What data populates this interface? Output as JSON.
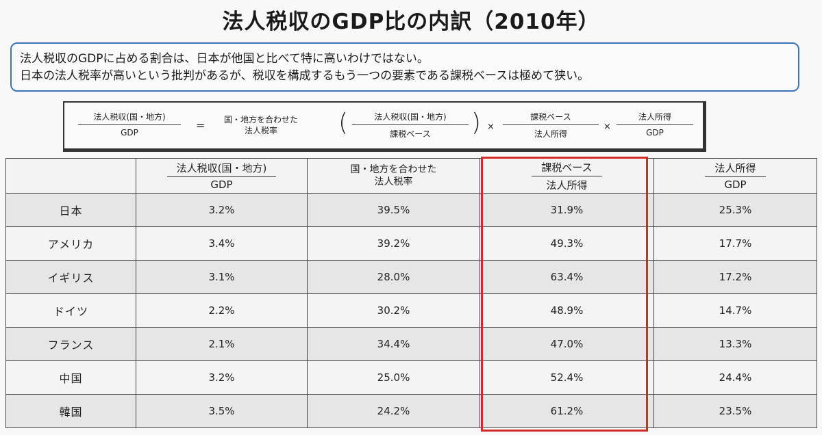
{
  "title": "法人税収のGDP比の内訳（2010年）",
  "summary": {
    "line1": "法人税収のGDPに占める割合は、日本が他国と比べて特に高いわけではない。",
    "line2": "日本の法人税率が高いという批判があるが、税収を構成するもう一つの要素である課税ベースは極めて狭い。"
  },
  "formula": {
    "lhs_num": "法人税収(国・地方)",
    "lhs_den": "GDP",
    "equals": "=",
    "rate_line1": "国・地方を合わせた",
    "rate_line2": "法人税率",
    "paren_open": "(",
    "f1_num": "法人税収(国・地方)",
    "f1_den": "課税ベース",
    "paren_close": ")",
    "times1": "×",
    "f2_num": "課税ベース",
    "f2_den": "法人所得",
    "times2": "×",
    "f3_num": "法人所得",
    "f3_den": "GDP"
  },
  "table": {
    "headers": [
      {
        "num": "法人税収(国・地方)",
        "den": "GDP"
      },
      {
        "line1": "国・地方を合わせた",
        "line2": "法人税率"
      },
      {
        "num": "課税ベース",
        "den": "法人所得"
      },
      {
        "num": "法人所得",
        "den": "GDP"
      }
    ],
    "rows": [
      {
        "country": "日本",
        "c1": "3.2%",
        "c2": "39.5%",
        "c3": "31.9%",
        "c4": "25.3%"
      },
      {
        "country": "アメリカ",
        "c1": "3.4%",
        "c2": "39.2%",
        "c3": "49.3%",
        "c4": "17.7%"
      },
      {
        "country": "イギリス",
        "c1": "3.1%",
        "c2": "28.0%",
        "c3": "63.4%",
        "c4": "17.2%"
      },
      {
        "country": "ドイツ",
        "c1": "2.2%",
        "c2": "30.2%",
        "c3": "48.9%",
        "c4": "14.7%"
      },
      {
        "country": "フランス",
        "c1": "2.1%",
        "c2": "34.4%",
        "c3": "47.0%",
        "c4": "13.3%"
      },
      {
        "country": "中国",
        "c1": "3.2%",
        "c2": "25.0%",
        "c3": "52.4%",
        "c4": "24.4%"
      },
      {
        "country": "韓国",
        "c1": "3.5%",
        "c2": "24.2%",
        "c3": "61.2%",
        "c4": "23.5%"
      }
    ]
  },
  "colors": {
    "highlight_border": "#d42a2a",
    "summary_border": "#3c73b5"
  }
}
